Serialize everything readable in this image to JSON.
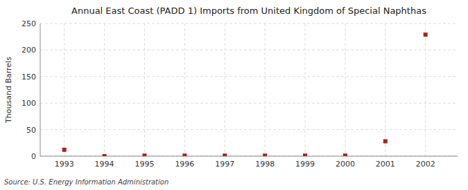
{
  "chart_data": {
    "type": "scatter",
    "title": "Annual East Coast (PADD 1) Imports from United Kingdom of Special Naphthas",
    "ylabel": "Thousand Barrels",
    "source": "Source: U.S. Energy Information Administration",
    "x": [
      1993,
      1994,
      1995,
      1996,
      1997,
      1998,
      1999,
      2000,
      2001,
      2002
    ],
    "values": [
      12,
      0,
      1,
      1,
      1,
      1,
      1,
      1,
      28,
      229
    ],
    "color": "#aa2222",
    "marker": "square",
    "xlim": [
      1992.4,
      2002.8
    ],
    "ylim": [
      0,
      250
    ],
    "xticks": [
      1993,
      1994,
      1995,
      1996,
      1997,
      1998,
      1999,
      2000,
      2001,
      2002
    ],
    "yticks": [
      0,
      50,
      100,
      150,
      200,
      250
    ],
    "grid": true
  }
}
